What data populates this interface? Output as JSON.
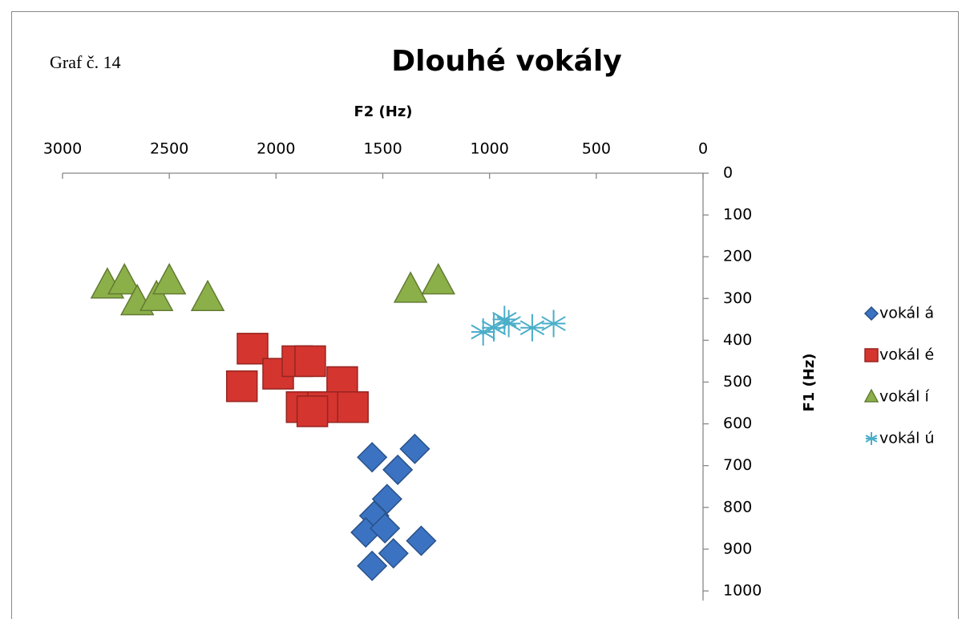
{
  "chart_data": {
    "type": "scatter",
    "title": "Dlouhé vokály",
    "annotation": "Graf č. 14",
    "x_label": "F2 (Hz)",
    "y_label": "F1 (Hz)",
    "xlim": [
      0,
      3000
    ],
    "xticks": [
      0,
      500,
      1000,
      1500,
      2000,
      2500,
      3000
    ],
    "x_reversed": true,
    "x_axis_position": "top",
    "ylim": [
      0,
      1000
    ],
    "yticks": [
      0,
      100,
      200,
      300,
      400,
      500,
      600,
      700,
      800,
      900,
      1000
    ],
    "y_reversed": true,
    "y_axis_position": "right",
    "grid": false,
    "legend": "right",
    "series": [
      {
        "name": "vokál á",
        "color": "#3b73c2",
        "marker": "diamond",
        "x": [
          1550,
          1350,
          1430,
          1480,
          1540,
          1580,
          1490,
          1320,
          1450,
          1550
        ],
        "values": [
          680,
          660,
          710,
          780,
          820,
          860,
          850,
          880,
          910,
          940
        ]
      },
      {
        "name": "vokál é",
        "color": "#d5352f",
        "marker": "square",
        "x": [
          2110,
          1990,
          1900,
          1840,
          2160,
          1690,
          1880,
          1780,
          1640,
          1830
        ],
        "values": [
          420,
          480,
          450,
          450,
          510,
          500,
          560,
          560,
          560,
          570
        ]
      },
      {
        "name": "vokál í",
        "color": "#8cb049",
        "marker": "triangle",
        "x": [
          2790,
          2710,
          2650,
          2560,
          2500,
          2320,
          1370,
          1240
        ],
        "values": [
          270,
          260,
          310,
          300,
          260,
          300,
          280,
          260
        ]
      },
      {
        "name": "vokál ú",
        "color": "#4aaec9",
        "marker": "star",
        "x": [
          1030,
          980,
          930,
          910,
          800,
          700
        ],
        "values": [
          380,
          370,
          350,
          360,
          370,
          360
        ]
      }
    ]
  }
}
